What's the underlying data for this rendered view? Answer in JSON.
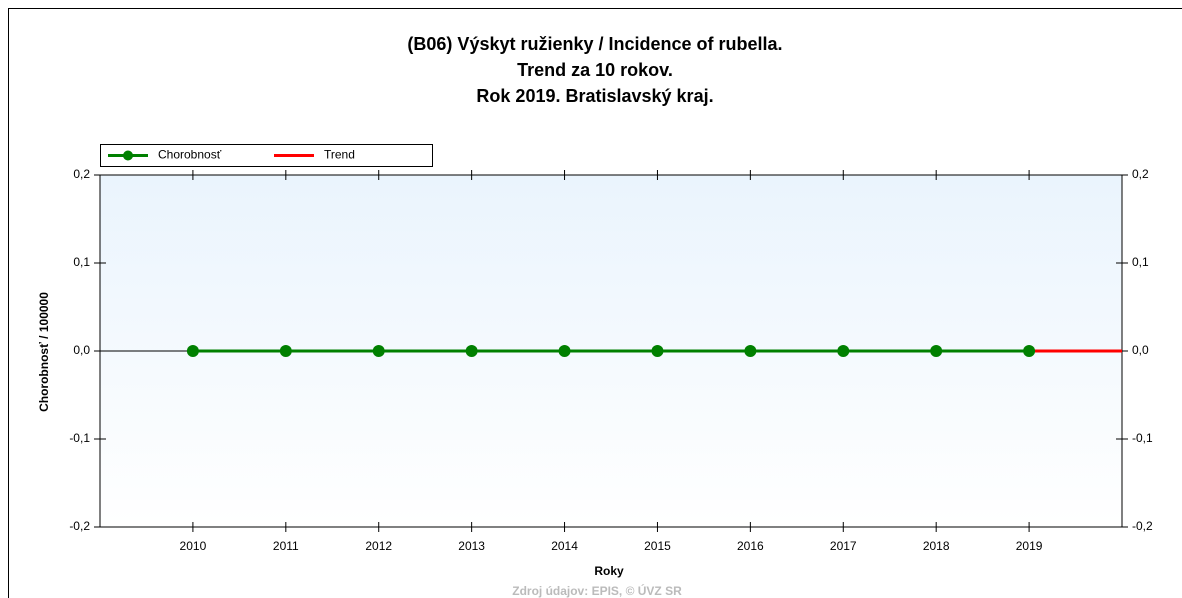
{
  "chart_data": {
    "type": "line",
    "title": [
      "(B06) Výskyt ružienky / Incidence of rubella.",
      "Trend za 10 rokov.",
      "Rok 2019. Bratislavský kraj."
    ],
    "xlabel": "Roky",
    "ylabel": "Chorobnosť / 100000",
    "source": "Zdroj údajov: EPIS, © ÚVZ SR",
    "legend": "top-left",
    "grid": false,
    "x": [
      2010,
      2011,
      2012,
      2013,
      2014,
      2015,
      2016,
      2017,
      2018,
      2019
    ],
    "xlim": [
      2009,
      2020
    ],
    "xticks": [
      2010,
      2011,
      2012,
      2013,
      2014,
      2015,
      2016,
      2017,
      2018,
      2019
    ],
    "ylim": [
      -0.2,
      0.2
    ],
    "yticks": [
      {
        "value": 0.2,
        "label": "0,2"
      },
      {
        "value": 0.1,
        "label": "0,1"
      },
      {
        "value": 0,
        "label": "0,0"
      },
      {
        "value": -0.1,
        "label": "-0,1"
      },
      {
        "value": -0.2,
        "label": "-0,2"
      }
    ],
    "series": [
      {
        "name": "Chorobnosť",
        "color": "#008000",
        "values": [
          0,
          0,
          0,
          0,
          0,
          0,
          0,
          0,
          0,
          0
        ]
      },
      {
        "name": "Trend",
        "color": "#ff0000",
        "x": [
          2019,
          2020
        ],
        "values": [
          0,
          0
        ]
      }
    ]
  }
}
